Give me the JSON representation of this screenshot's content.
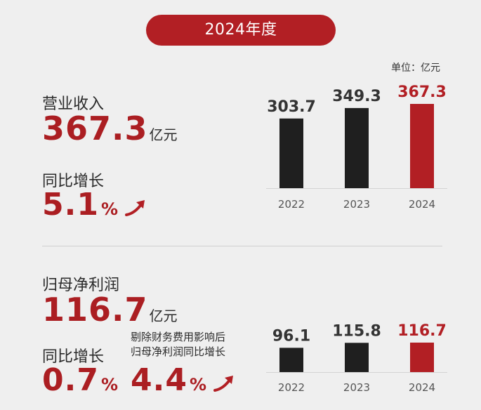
{
  "header": {
    "period": "2024年度",
    "unit": "单位：亿元"
  },
  "revenue": {
    "label": "营业收入",
    "value": "367.3",
    "value_unit": "亿元",
    "growth_label": "同比增长",
    "growth": "5.1",
    "growth_unit": "%"
  },
  "profit": {
    "label": "归母净利润",
    "value": "116.7",
    "value_unit": "亿元",
    "growth_label": "同比增长",
    "growth": "0.7",
    "growth_unit": "%",
    "adjusted_note_line1": "剔除财务费用影响后",
    "adjusted_note_line2": "归母净利润同比增长",
    "adjusted_growth": "4.4",
    "adjusted_growth_unit": "%"
  },
  "colors": {
    "accent": "#b21f24",
    "bar": "#1f1f1f",
    "highlight_bar": "#b21f24"
  },
  "chart_data": [
    {
      "type": "bar",
      "categories": [
        "2022",
        "2023",
        "2024"
      ],
      "values": [
        303.7,
        349.3,
        367.3
      ],
      "value_labels": [
        "303.7",
        "349.3",
        "367.3"
      ],
      "highlight_index": 2
    },
    {
      "type": "bar",
      "categories": [
        "2022",
        "2023",
        "2024"
      ],
      "values": [
        96.1,
        115.8,
        116.7
      ],
      "value_labels": [
        "96.1",
        "115.8",
        "116.7"
      ],
      "highlight_index": 2
    }
  ]
}
